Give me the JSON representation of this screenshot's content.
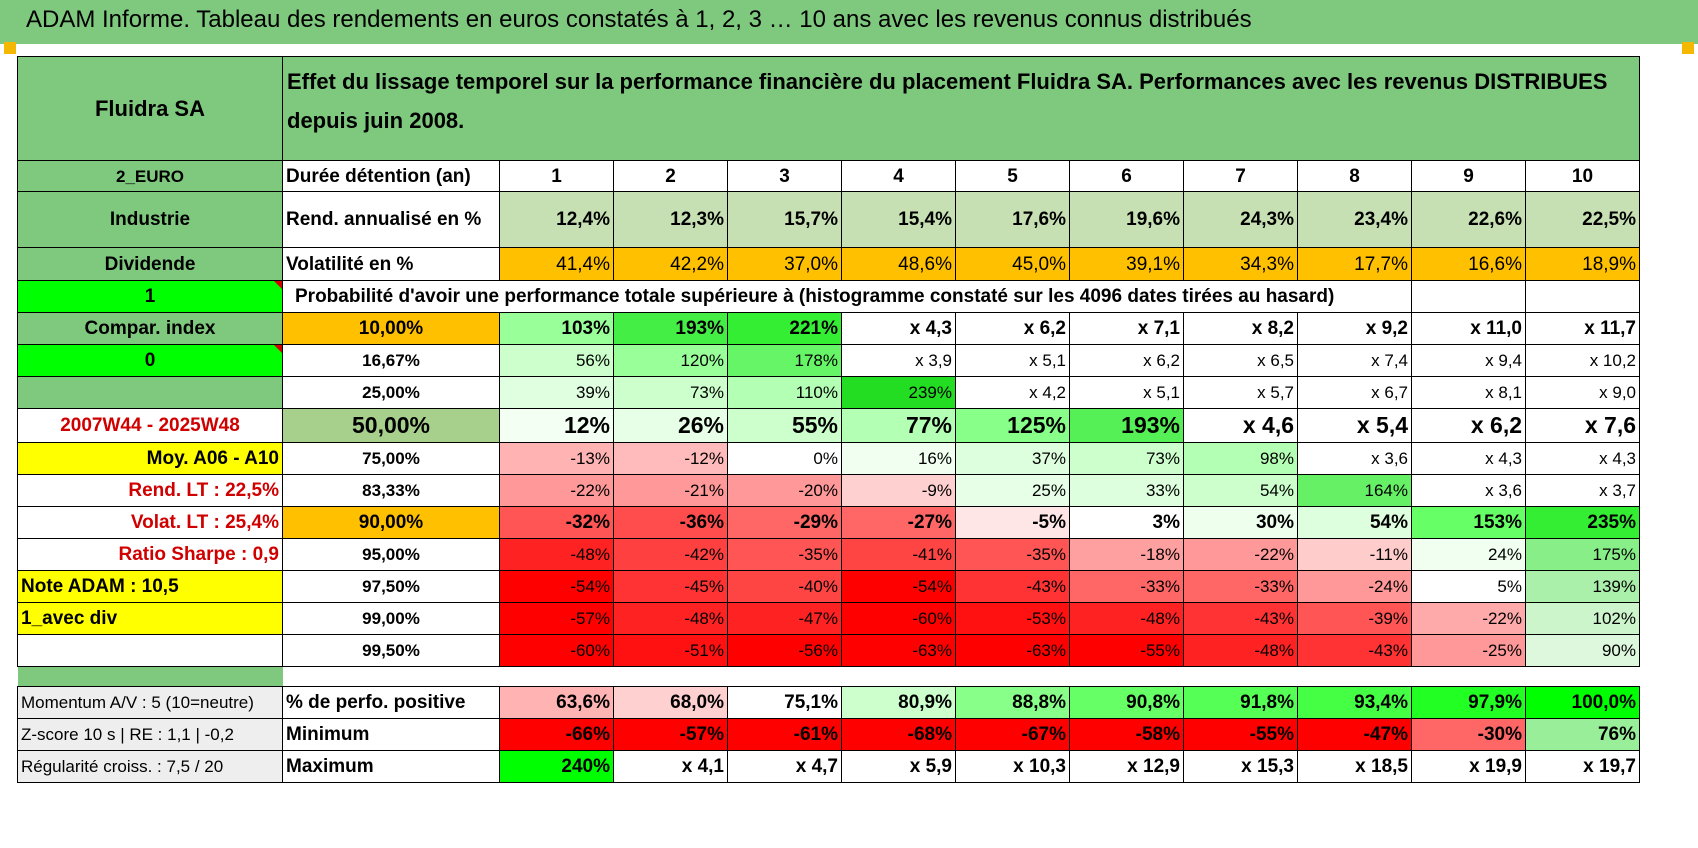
{
  "header": {
    "title": "ADAM Informe. Tableau des rendements en euros constatés à 1, 2, 3 … 10 ans avec les revenus connus distribués"
  },
  "colors": {
    "header_green": "#7fc97f",
    "mid_green": "#a8d08d",
    "bright_green": "#00ff00",
    "orange": "#ffc000",
    "yellow": "#ffff00",
    "red": "#ff0000"
  },
  "sidebar": {
    "company": "Fluidra SA",
    "currency": "2_EURO",
    "sector": "Industrie",
    "income_type": "Dividende",
    "flag1": "1",
    "compar_index": "Compar. index",
    "flag2": "0",
    "period": "2007W44 - 2025W48",
    "moy": "Moy. A06 - A10",
    "rend_lt": "Rend. LT :    22,5%",
    "volat_lt": "Volat. LT :    25,4%",
    "sharpe": "Ratio Sharpe :     0,9",
    "note": "Note ADAM : 10,5",
    "mode": "1_avec div"
  },
  "description": "Effet du lissage temporel sur la performance financière du placement Fluidra SA. Performances avec les revenus DISTRIBUES depuis juin 2008.",
  "rows": {
    "duration": {
      "label": "Durée détention (an)",
      "values": [
        "1",
        "2",
        "3",
        "4",
        "5",
        "6",
        "7",
        "8",
        "9",
        "10"
      ]
    },
    "rend": {
      "label": "Rend. annualisé en %",
      "values": [
        "12,4%",
        "12,3%",
        "15,7%",
        "15,4%",
        "17,6%",
        "19,6%",
        "24,3%",
        "23,4%",
        "22,6%",
        "22,5%"
      ]
    },
    "vol": {
      "label": "Volatilité en %",
      "values": [
        "41,4%",
        "42,2%",
        "37,0%",
        "48,6%",
        "45,0%",
        "39,1%",
        "34,3%",
        "17,7%",
        "16,6%",
        "18,9%"
      ]
    },
    "prob_title": "Probabilité d'avoir une performance totale supérieure à (histogramme constaté sur les 4096 dates tirées au hasard)"
  },
  "probability_rows": [
    {
      "pct": "10,00%",
      "values": [
        "103%",
        "193%",
        "221%",
        "x 4,3",
        "x 6,2",
        "x 7,1",
        "x 8,2",
        "x 9,2",
        "x 11,0",
        "x 11,7"
      ]
    },
    {
      "pct": "16,67%",
      "values": [
        "56%",
        "120%",
        "178%",
        "x 3,9",
        "x 5,1",
        "x 6,2",
        "x 6,5",
        "x 7,4",
        "x 9,4",
        "x 10,2"
      ]
    },
    {
      "pct": "25,00%",
      "values": [
        "39%",
        "73%",
        "110%",
        "239%",
        "x 4,2",
        "x 5,1",
        "x 5,7",
        "x 6,7",
        "x 8,1",
        "x 9,0"
      ]
    },
    {
      "pct": "50,00%",
      "values": [
        "12%",
        "26%",
        "55%",
        "77%",
        "125%",
        "193%",
        "x 4,6",
        "x 5,4",
        "x 6,2",
        "x 7,6"
      ]
    },
    {
      "pct": "75,00%",
      "values": [
        "-13%",
        "-12%",
        "0%",
        "16%",
        "37%",
        "73%",
        "98%",
        "x 3,6",
        "x 4,3",
        "x 4,3"
      ]
    },
    {
      "pct": "83,33%",
      "values": [
        "-22%",
        "-21%",
        "-20%",
        "-9%",
        "25%",
        "33%",
        "54%",
        "164%",
        "x 3,6",
        "x 3,7"
      ]
    },
    {
      "pct": "90,00%",
      "values": [
        "-32%",
        "-36%",
        "-29%",
        "-27%",
        "-5%",
        "3%",
        "30%",
        "54%",
        "153%",
        "235%"
      ]
    },
    {
      "pct": "95,00%",
      "values": [
        "-48%",
        "-42%",
        "-35%",
        "-41%",
        "-35%",
        "-18%",
        "-22%",
        "-11%",
        "24%",
        "175%"
      ]
    },
    {
      "pct": "97,50%",
      "values": [
        "-54%",
        "-45%",
        "-40%",
        "-54%",
        "-43%",
        "-33%",
        "-33%",
        "-24%",
        "5%",
        "139%"
      ]
    },
    {
      "pct": "99,00%",
      "values": [
        "-57%",
        "-48%",
        "-47%",
        "-60%",
        "-53%",
        "-48%",
        "-43%",
        "-39%",
        "-22%",
        "102%"
      ]
    },
    {
      "pct": "99,50%",
      "values": [
        "-60%",
        "-51%",
        "-56%",
        "-63%",
        "-63%",
        "-55%",
        "-48%",
        "-43%",
        "-25%",
        "90%"
      ]
    }
  ],
  "bottom": {
    "momentum": "Momentum A/V : 5 (10=neutre)",
    "zscore": "Z-score 10 s | RE : 1,1 | -0,2",
    "regularite": "Régularité croiss. : 7,5 / 20",
    "positive": {
      "label": "% de perfo. positive",
      "values": [
        "63,6%",
        "68,0%",
        "75,1%",
        "80,9%",
        "88,8%",
        "90,8%",
        "91,8%",
        "93,4%",
        "97,9%",
        "100,0%"
      ]
    },
    "minimum": {
      "label": "Minimum",
      "values": [
        "-66%",
        "-57%",
        "-61%",
        "-68%",
        "-67%",
        "-58%",
        "-55%",
        "-47%",
        "-30%",
        "76%"
      ]
    },
    "maximum": {
      "label": "Maximum",
      "values": [
        "240%",
        "x 4,1",
        "x 4,7",
        "x 5,9",
        "x 10,3",
        "x 12,9",
        "x 15,3",
        "x 18,5",
        "x 19,9",
        "x 19,7"
      ]
    }
  },
  "cell_colors": {
    "rend": [
      "#c6e0b4",
      "#c6e0b4",
      "#c6e0b4",
      "#c6e0b4",
      "#c6e0b4",
      "#c6e0b4",
      "#c6e0b4",
      "#c6e0b4",
      "#c6e0b4",
      "#c6e0b4"
    ],
    "vol": [
      "#ffc000",
      "#ffc000",
      "#ffc000",
      "#ffc000",
      "#ffc000",
      "#ffc000",
      "#ffc000",
      "#ffc000",
      "#ffc000",
      "#ffc000"
    ],
    "prob": [
      [
        "#99ff99",
        "#44ee44",
        "#33ee33",
        "#ffffff",
        "#ffffff",
        "#ffffff",
        "#ffffff",
        "#ffffff",
        "#ffffff",
        "#ffffff"
      ],
      [
        "#ccffcc",
        "#99ff99",
        "#66f566",
        "#ffffff",
        "#ffffff",
        "#ffffff",
        "#ffffff",
        "#ffffff",
        "#ffffff",
        "#ffffff"
      ],
      [
        "#e0ffe0",
        "#ccffcc",
        "#b3ffb3",
        "#22dd22",
        "#ffffff",
        "#ffffff",
        "#ffffff",
        "#ffffff",
        "#ffffff",
        "#ffffff"
      ],
      [
        "#f2fff2",
        "#e6ffe6",
        "#ccffcc",
        "#b3ffb3",
        "#88ff88",
        "#55f055",
        "#ffffff",
        "#ffffff",
        "#ffffff",
        "#ffffff"
      ],
      [
        "#ffb3b3",
        "#ffbbbb",
        "#ffffff",
        "#f0fff0",
        "#ddffdd",
        "#ccffcc",
        "#b3ffb3",
        "#ffffff",
        "#ffffff",
        "#ffffff"
      ],
      [
        "#ff9999",
        "#ff9999",
        "#ff9999",
        "#ffd0d0",
        "#e6ffe6",
        "#ddffdd",
        "#ccffcc",
        "#66f066",
        "#ffffff",
        "#ffffff"
      ],
      [
        "#ff5555",
        "#ff4d4d",
        "#ff6666",
        "#ff6666",
        "#ffe6e6",
        "#ffffff",
        "#eeffee",
        "#ddffdd",
        "#66ff66",
        "#33ee33"
      ],
      [
        "#ff2222",
        "#ff4040",
        "#ff5555",
        "#ff4444",
        "#ff5555",
        "#ffa0a0",
        "#ff9999",
        "#ffcccc",
        "#f0fff0",
        "#88ee88"
      ],
      [
        "#ff0000",
        "#ff3333",
        "#ff4444",
        "#ff0000",
        "#ff3333",
        "#ff6666",
        "#ff6666",
        "#ff9999",
        "#ffffff",
        "#aaf0aa"
      ],
      [
        "#ff0000",
        "#ff2222",
        "#ff2222",
        "#ff0000",
        "#ff1111",
        "#ff2222",
        "#ff3333",
        "#ff5555",
        "#ffaaaa",
        "#ccf5cc"
      ],
      [
        "#ff0000",
        "#ff1111",
        "#ff0000",
        "#ff0000",
        "#ff0000",
        "#ff0000",
        "#ff2222",
        "#ff3333",
        "#ff9999",
        "#ddf8dd"
      ]
    ],
    "positive": [
      "#ffb3b3",
      "#ffd0d0",
      "#ffffff",
      "#ccffcc",
      "#88ff88",
      "#66ff66",
      "#55ff55",
      "#44ff44",
      "#22ff22",
      "#00ff00"
    ],
    "minimum": [
      "#ff0000",
      "#ff0000",
      "#ff0000",
      "#ff0000",
      "#ff0000",
      "#ff0000",
      "#ff0000",
      "#ff0000",
      "#ff6666",
      "#99ee99"
    ],
    "maximum": [
      "#00ff00",
      "#ffffff",
      "#ffffff",
      "#ffffff",
      "#ffffff",
      "#ffffff",
      "#ffffff",
      "#ffffff",
      "#ffffff",
      "#ffffff"
    ]
  }
}
